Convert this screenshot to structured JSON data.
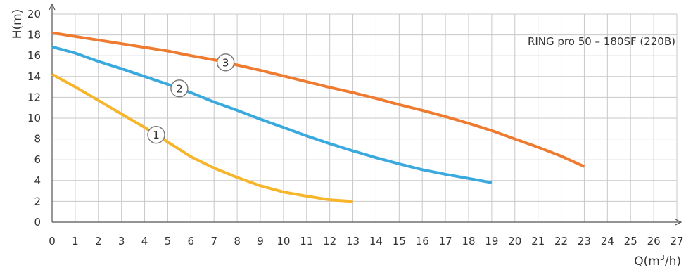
{
  "chart_data": {
    "type": "line",
    "model_label": "RING pro 50 – 180SF (220В)",
    "ylabel": "H(m)",
    "xlabel": {
      "prefix": "Q(m",
      "superscript": "3",
      "suffix": "/h)"
    },
    "xlim": [
      0,
      27
    ],
    "ylim": [
      0,
      20
    ],
    "x_ticks": [
      0,
      1,
      2,
      3,
      4,
      5,
      6,
      7,
      8,
      9,
      10,
      11,
      12,
      13,
      14,
      15,
      16,
      17,
      18,
      19,
      20,
      21,
      22,
      23,
      24,
      25,
      26,
      27
    ],
    "y_ticks": [
      0,
      2,
      4,
      6,
      8,
      10,
      12,
      14,
      16,
      18,
      20
    ],
    "grid": true,
    "series": [
      {
        "name": "1",
        "color": "#F7B52C",
        "label_x": 4.5,
        "x": [
          0,
          1,
          2,
          3,
          4,
          5,
          6,
          7,
          8,
          9,
          10,
          11,
          12,
          13
        ],
        "y": [
          14.2,
          13.0,
          11.7,
          10.4,
          9.1,
          7.7,
          6.3,
          5.2,
          4.3,
          3.5,
          2.9,
          2.5,
          2.15,
          2.0
        ]
      },
      {
        "name": "2",
        "color": "#3AA9DE",
        "label_x": 5.5,
        "x": [
          0,
          1,
          2,
          3,
          4,
          5,
          6,
          7,
          8,
          9,
          10,
          11,
          12,
          13,
          14,
          15,
          16,
          17,
          18,
          19
        ],
        "y": [
          16.85,
          16.25,
          15.45,
          14.75,
          14.0,
          13.25,
          12.45,
          11.55,
          10.75,
          9.9,
          9.1,
          8.3,
          7.55,
          6.85,
          6.2,
          5.6,
          5.05,
          4.6,
          4.2,
          3.8
        ]
      },
      {
        "name": "3",
        "color": "#EE7B30",
        "label_x": 7.5,
        "x": [
          0,
          1,
          2,
          3,
          4,
          5,
          6,
          7,
          8,
          9,
          10,
          11,
          12,
          13,
          14,
          15,
          16,
          17,
          18,
          19,
          20,
          21,
          22,
          23
        ],
        "y": [
          18.2,
          17.85,
          17.5,
          17.15,
          16.8,
          16.45,
          16.0,
          15.6,
          15.1,
          14.6,
          14.05,
          13.5,
          12.95,
          12.45,
          11.9,
          11.3,
          10.75,
          10.15,
          9.5,
          8.8,
          8.0,
          7.2,
          6.35,
          5.35
        ]
      }
    ]
  }
}
